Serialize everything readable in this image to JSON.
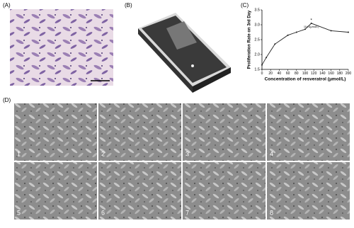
{
  "panel_labels": [
    "(A)",
    "(B)",
    "(C)",
    "(D)"
  ],
  "image_labels": [
    "1",
    "2",
    "3",
    "4",
    "5",
    "6",
    "7",
    "8"
  ],
  "chart_data": {
    "type": "line",
    "y_label": "Proliferation Rate on 3rd Day",
    "x_label": "Concentration of resveratrol (μmol/L)",
    "annotations": [
      "*",
      "114.3(μmol/L)"
    ],
    "x": [
      0,
      10,
      30,
      60,
      80,
      100,
      114.3,
      160,
      200
    ],
    "series": [
      {
        "color": "#222222",
        "values": [
          1.65,
          1.9,
          2.35,
          2.65,
          2.75,
          2.85,
          3.05,
          2.8,
          2.75
        ]
      }
    ],
    "xlim": [
      0,
      200
    ],
    "xticks": [
      0,
      20,
      40,
      60,
      80,
      100,
      120,
      140,
      160,
      180,
      200
    ],
    "ylim": [
      1.5,
      3.5
    ],
    "yticks": [
      {
        "value": 1.5,
        "label": "1.5"
      },
      {
        "value": 2.0,
        "label": "2.0"
      },
      {
        "value": 2.5,
        "label": "2.5"
      },
      {
        "value": 3.0,
        "label": "3.0"
      },
      {
        "value": 3.5,
        "label": "3.5"
      }
    ]
  }
}
